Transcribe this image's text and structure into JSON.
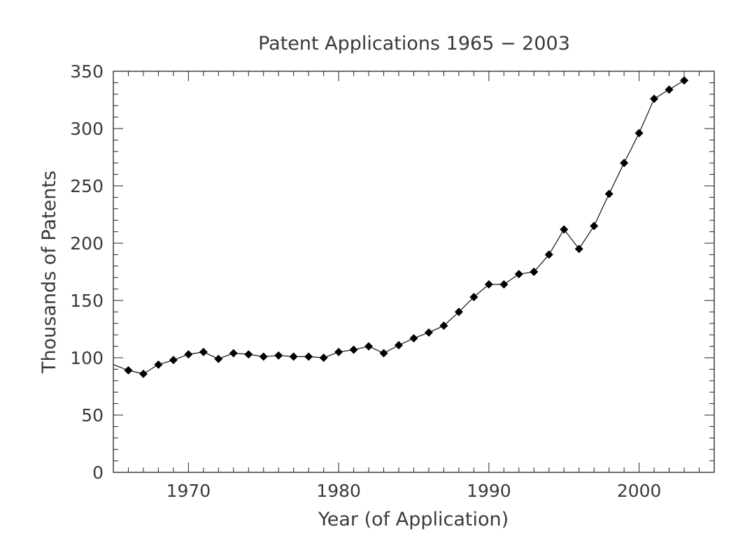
{
  "chart_data": {
    "type": "line",
    "title": "Patent Applications 1965 − 2003",
    "xlabel": "Year (of Application)",
    "ylabel": "Thousands of Patents",
    "xlim": [
      1965,
      2005
    ],
    "ylim": [
      0,
      350
    ],
    "x_ticks": [
      1970,
      1980,
      1990,
      2000
    ],
    "y_ticks": [
      0,
      50,
      100,
      150,
      200,
      250,
      300,
      350
    ],
    "x_minor_step": 1,
    "y_minor_step": 10,
    "marker": "diamond",
    "series": [
      {
        "x": [
          1965,
          1966,
          1967,
          1968,
          1969,
          1970,
          1971,
          1972,
          1973,
          1974,
          1975,
          1976,
          1977,
          1978,
          1979,
          1980,
          1981,
          1982,
          1983,
          1984,
          1985,
          1986,
          1987,
          1988,
          1989,
          1990,
          1991,
          1992,
          1993,
          1994,
          1995,
          1996,
          1997,
          1998,
          1999,
          2000,
          2001,
          2002,
          2003
        ],
        "values": [
          94,
          89,
          86,
          94,
          98,
          103,
          105,
          99,
          104,
          103,
          101,
          102,
          101,
          101,
          100,
          105,
          107,
          110,
          104,
          111,
          117,
          122,
          128,
          140,
          153,
          164,
          164,
          173,
          175,
          190,
          212,
          195,
          215,
          243,
          270,
          296,
          326,
          334,
          342
        ]
      }
    ]
  }
}
